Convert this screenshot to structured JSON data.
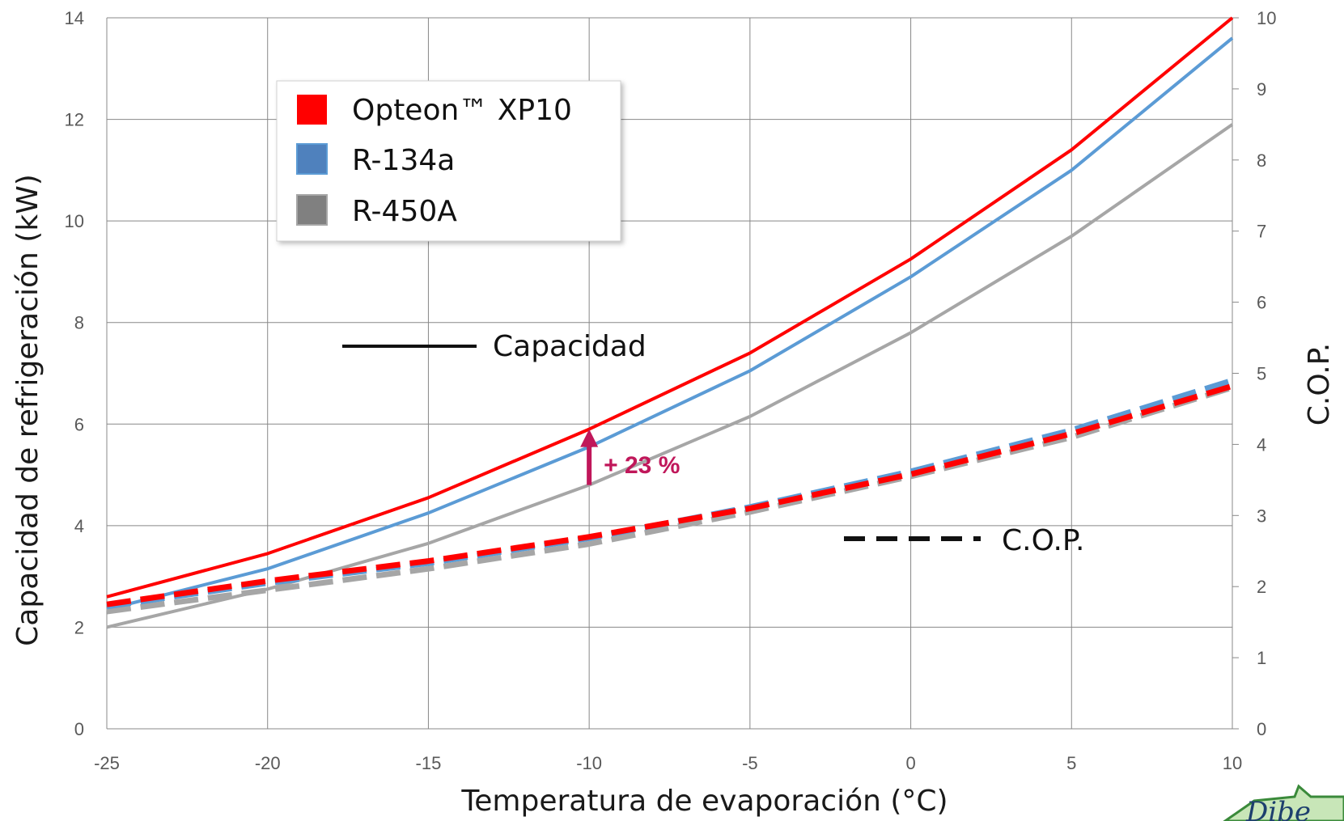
{
  "chart_data": {
    "type": "line",
    "title": "",
    "xlabel": "Temperatura de evaporación (°C)",
    "ylabel": "Capacidad de refrigeración (kW)",
    "y2label": "C.O.P.",
    "xlim": [
      -25,
      10
    ],
    "ylim": [
      0,
      14
    ],
    "y2lim": [
      0,
      10
    ],
    "x_ticks": [
      -25,
      -20,
      -15,
      -10,
      -5,
      0,
      5,
      10
    ],
    "y_ticks": [
      0,
      2,
      4,
      6,
      8,
      10,
      12,
      14
    ],
    "y2_ticks": [
      0,
      1,
      2,
      3,
      4,
      5,
      6,
      7,
      8,
      9,
      10
    ],
    "grid": true,
    "legend": {
      "position": "top-left",
      "entries": [
        "Opteon™ XP10",
        "R-134a",
        "R-450A"
      ]
    },
    "x": [
      -25,
      -20,
      -15,
      -10,
      -5,
      0,
      5,
      10
    ],
    "series": [
      {
        "name": "Opteon™ XP10",
        "kind": "capacity",
        "axis": "left",
        "style": "solid",
        "color": "#ff0000",
        "values": [
          2.6,
          3.45,
          4.55,
          5.9,
          7.4,
          9.25,
          11.4,
          14.0
        ]
      },
      {
        "name": "R-134a",
        "kind": "capacity",
        "axis": "left",
        "style": "solid",
        "color": "#5b9bd5",
        "values": [
          2.35,
          3.15,
          4.25,
          5.55,
          7.05,
          8.9,
          11.0,
          13.6
        ]
      },
      {
        "name": "R-450A",
        "kind": "capacity",
        "axis": "left",
        "style": "solid",
        "color": "#a6a6a6",
        "values": [
          2.0,
          2.75,
          3.65,
          4.8,
          6.15,
          7.8,
          9.7,
          11.9
        ]
      },
      {
        "name": "R-450A",
        "kind": "cop",
        "axis": "right",
        "style": "dashed",
        "color": "#a6a6a6",
        "values": [
          1.65,
          1.95,
          2.25,
          2.6,
          3.05,
          3.55,
          4.1,
          4.8
        ]
      },
      {
        "name": "R-134a",
        "kind": "cop",
        "axis": "right",
        "style": "dashed",
        "color": "#5b9bd5",
        "values": [
          1.72,
          2.05,
          2.33,
          2.68,
          3.12,
          3.62,
          4.2,
          4.9
        ]
      },
      {
        "name": "Opteon™ XP10",
        "kind": "cop",
        "axis": "right",
        "style": "dashed",
        "color": "#ff0000",
        "values": [
          1.75,
          2.08,
          2.36,
          2.7,
          3.1,
          3.58,
          4.15,
          4.82
        ]
      }
    ],
    "annotations": {
      "capacity_label": "Capacidad",
      "cop_label": "C.O.P.",
      "increase_label": "+ 23 %",
      "increase_at_x": -10,
      "increase_from": 4.8,
      "increase_to": 5.9,
      "increase_color": "#c0175a"
    }
  },
  "colors": {
    "grid": "#888888",
    "legend_border": "#d0d0d0"
  }
}
